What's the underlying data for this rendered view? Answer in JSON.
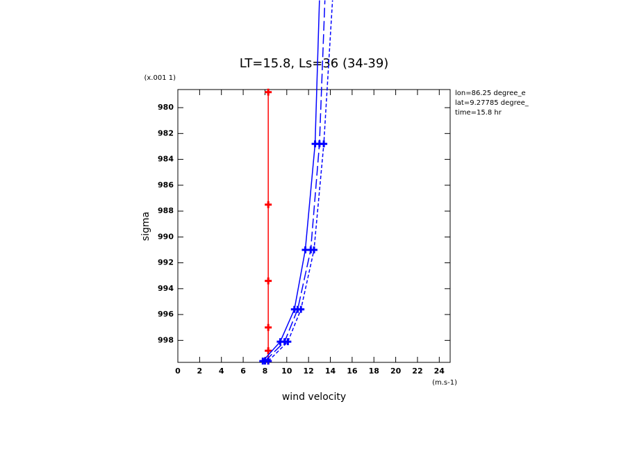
{
  "chart_data": {
    "type": "line",
    "title": "LT=15.8, Ls=36 (34-39)",
    "x_label": "wind velocity",
    "y_label": "sigma",
    "x_unit": "(m.s-1)",
    "y_unit": "(x.001 1)",
    "annotations": [
      "lon=86.25 degree_e",
      "lat=9.27785 degree_",
      "time=15.8 hr"
    ],
    "xlim": [
      0,
      25
    ],
    "ylim": [
      978.6,
      999.7
    ],
    "y_inverted": true,
    "xticks": [
      0,
      2,
      4,
      6,
      8,
      10,
      12,
      14,
      16,
      18,
      20,
      22,
      24
    ],
    "yticks": [
      980,
      982,
      984,
      986,
      988,
      990,
      992,
      994,
      996,
      998
    ],
    "series": [
      {
        "color": "#ff0000",
        "dash": "solid",
        "x": [
          8.3,
          8.3,
          8.3,
          8.3,
          8.3,
          8.3
        ],
        "y": [
          978.8,
          987.5,
          993.4,
          997.0,
          998.8,
          999.6
        ]
      },
      {
        "color": "#0000ff",
        "dash": "solid",
        "x": [
          7.8,
          9.4,
          10.7,
          11.7,
          12.6,
          13.0
        ],
        "y": [
          999.6,
          998.1,
          995.6,
          991.0,
          982.8,
          971.7
        ]
      },
      {
        "color": "#0000ff",
        "dash": "long",
        "x": [
          8.0,
          9.8,
          11.0,
          12.2,
          13.0,
          13.5
        ],
        "y": [
          999.6,
          998.1,
          995.6,
          991.0,
          982.8,
          971.7
        ]
      },
      {
        "color": "#0000ff",
        "dash": "short",
        "x": [
          8.3,
          10.1,
          11.3,
          12.5,
          13.4,
          14.2
        ],
        "y": [
          999.6,
          998.1,
          995.6,
          991.0,
          982.8,
          971.7
        ]
      }
    ]
  }
}
